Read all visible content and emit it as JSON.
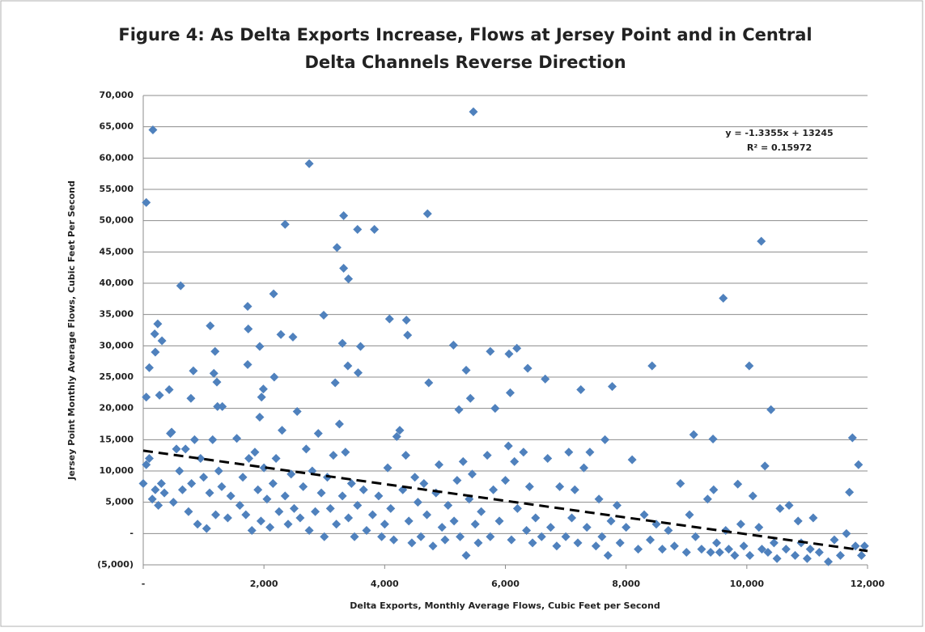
{
  "chart_data": {
    "type": "scatter",
    "title": [
      "Figure 4: As Delta Exports Increase, Flows at Jersey Point and in Central",
      "Delta Channels Reverse Direction"
    ],
    "x_label": "Delta Exports, Monthly Average Flows, Cubic Feet per Second",
    "y_label": "Jersey Point Monthly Average Flows, Cubic Feet Per Second",
    "annotations": [
      "y = -1.3355x + 13245",
      "R² = 0.15972"
    ],
    "trendline": {
      "slope": -1.3355,
      "intercept": 13245
    },
    "color": "#4f81bd",
    "grid": true,
    "xlim": [
      0,
      12000
    ],
    "ylim": [
      -5000,
      70000
    ],
    "xticks": [
      {
        "value": 0,
        "label": "-"
      },
      {
        "value": 2000,
        "label": "2,000"
      },
      {
        "value": 4000,
        "label": "4,000"
      },
      {
        "value": 6000,
        "label": "6,000"
      },
      {
        "value": 8000,
        "label": "8,000"
      },
      {
        "value": 10000,
        "label": "10,000"
      },
      {
        "value": 12000,
        "label": "12,000"
      }
    ],
    "yticks": [
      {
        "value": -5000,
        "label": "(5,000)"
      },
      {
        "value": 0,
        "label": "-"
      },
      {
        "value": 5000,
        "label": "5,000"
      },
      {
        "value": 10000,
        "label": "10,000"
      },
      {
        "value": 15000,
        "label": "15,000"
      },
      {
        "value": 20000,
        "label": "20,000"
      },
      {
        "value": 25000,
        "label": "25,000"
      },
      {
        "value": 30000,
        "label": "30,000"
      },
      {
        "value": 35000,
        "label": "35,000"
      },
      {
        "value": 40000,
        "label": "40,000"
      },
      {
        "value": 45000,
        "label": "45,000"
      },
      {
        "value": 50000,
        "label": "50,000"
      },
      {
        "value": 55000,
        "label": "55,000"
      },
      {
        "value": 60000,
        "label": "60,000"
      },
      {
        "value": 65000,
        "label": "65,000"
      },
      {
        "value": 70000,
        "label": "70,000"
      }
    ],
    "x": [
      50,
      160,
      100,
      50,
      190,
      240,
      200,
      310,
      270,
      430,
      620,
      470,
      790,
      830,
      1110,
      1190,
      1170,
      1220,
      1230,
      1310,
      1730,
      1740,
      1730,
      2160,
      2170,
      1930,
      1990,
      1930,
      1960,
      2280,
      2480,
      2350,
      2750,
      2990,
      3210,
      3320,
      3320,
      3400,
      3550,
      3830,
      3300,
      3390,
      3560,
      3600,
      3180,
      4710,
      4080,
      4360,
      4380,
      4730,
      5470,
      5140,
      5350,
      5420,
      5230,
      5830,
      5750,
      6060,
      6190,
      6080,
      6370,
      6660,
      7250,
      7770,
      8430,
      9610,
      10240,
      10040,
      10400,
      9120,
      9440,
      9850,
      11750,
      11850,
      11700,
      0,
      50,
      100,
      150,
      200,
      250,
      300,
      350,
      450,
      500,
      550,
      600,
      650,
      700,
      750,
      800,
      850,
      900,
      950,
      1000,
      1050,
      1100,
      1150,
      1200,
      1250,
      1300,
      1400,
      1450,
      1550,
      1600,
      1650,
      1700,
      1750,
      1800,
      1850,
      1900,
      1950,
      2000,
      2050,
      2100,
      2150,
      2200,
      2250,
      2300,
      2350,
      2400,
      2450,
      2500,
      2550,
      2600,
      2650,
      2700,
      2750,
      2800,
      2850,
      2900,
      2950,
      3000,
      3050,
      3100,
      3150,
      3200,
      3250,
      3300,
      3350,
      3400,
      3450,
      3500,
      3550,
      3650,
      3700,
      3800,
      3900,
      3950,
      4000,
      4050,
      4100,
      4150,
      4200,
      4250,
      4300,
      4350,
      4400,
      4450,
      4500,
      4550,
      4600,
      4650,
      4700,
      4800,
      4850,
      4900,
      4950,
      5000,
      5050,
      5150,
      5200,
      5250,
      5300,
      5350,
      5400,
      5450,
      5500,
      5550,
      5600,
      5700,
      5750,
      5800,
      5900,
      6000,
      6050,
      6100,
      6150,
      6200,
      6300,
      6350,
      6400,
      6450,
      6500,
      6600,
      6700,
      6750,
      6850,
      6900,
      7000,
      7050,
      7100,
      7150,
      7200,
      7300,
      7350,
      7400,
      7500,
      7550,
      7600,
      7650,
      7700,
      7750,
      7850,
      7900,
      8000,
      8100,
      8200,
      8300,
      8400,
      8500,
      8600,
      8700,
      8800,
      8900,
      9000,
      9050,
      9150,
      9250,
      9350,
      9400,
      9450,
      9500,
      9550,
      9650,
      9700,
      9800,
      9900,
      9950,
      10050,
      10100,
      10200,
      10250,
      10300,
      10350,
      10450,
      10500,
      10550,
      10650,
      10700,
      10800,
      10850,
      10900,
      11000,
      11050,
      11100,
      11200,
      11350,
      11450,
      11550,
      11650,
      11800,
      11900,
      11950
    ],
    "values": [
      52900,
      64500,
      26500,
      21800,
      31900,
      33500,
      29000,
      30800,
      22100,
      23000,
      39600,
      16200,
      21600,
      26000,
      33200,
      29100,
      25600,
      24200,
      20300,
      20300,
      36300,
      32700,
      27000,
      38300,
      25000,
      29900,
      23100,
      18600,
      21800,
      31800,
      31400,
      49400,
      59100,
      34900,
      45700,
      50800,
      42400,
      40700,
      48600,
      48600,
      30400,
      26800,
      25700,
      29900,
      24100,
      51100,
      34300,
      34100,
      31700,
      24100,
      67400,
      30100,
      26100,
      21600,
      19800,
      20000,
      29100,
      28700,
      29600,
      22500,
      26400,
      24700,
      23000,
      23500,
      26800,
      37600,
      46700,
      26800,
      19800,
      15800,
      15100,
      7900,
      15300,
      11000,
      6600,
      8000,
      11000,
      12000,
      5500,
      7000,
      4500,
      8000,
      6500,
      16000,
      5000,
      13500,
      10000,
      7000,
      13500,
      3500,
      8000,
      15000,
      1500,
      12000,
      9000,
      800,
      6500,
      15000,
      3000,
      10000,
      7500,
      2500,
      6000,
      15200,
      4500,
      9000,
      3000,
      12000,
      500,
      13000,
      7000,
      2000,
      10500,
      5500,
      1000,
      8000,
      12000,
      3500,
      16500,
      6000,
      1500,
      9500,
      4000,
      19500,
      2500,
      7500,
      13500,
      500,
      10000,
      3500,
      16000,
      6500,
      -500,
      9000,
      4000,
      12500,
      1500,
      17500,
      6000,
      13000,
      2500,
      8000,
      -500,
      4500,
      7000,
      500,
      3000,
      6000,
      -500,
      1500,
      10500,
      4000,
      -1000,
      15500,
      16500,
      7000,
      12500,
      2000,
      -1500,
      9000,
      5000,
      -500,
      8000,
      3000,
      -2000,
      6500,
      11000,
      1000,
      -1000,
      4500,
      2000,
      8500,
      -500,
      11500,
      -3500,
      5500,
      9500,
      1500,
      -1500,
      3500,
      12500,
      -500,
      7000,
      2000,
      8500,
      14000,
      -1000,
      11500,
      4000,
      13000,
      500,
      7500,
      -1500,
      2500,
      -500,
      12000,
      1000,
      -2000,
      7500,
      -500,
      13000,
      2500,
      7000,
      -1500,
      10500,
      1000,
      13000,
      -2000,
      5500,
      -500,
      15000,
      -3500,
      2000,
      4500,
      -1500,
      1000,
      11800,
      -2500,
      3000,
      -1000,
      1500,
      -2500,
      500,
      -2000,
      8000,
      -3000,
      3000,
      -500,
      -2500,
      5500,
      -3000,
      7000,
      -1500,
      -3000,
      500,
      -2500,
      -3500,
      1500,
      -2000,
      -3500,
      6000,
      1000,
      -2500,
      10800,
      -3000,
      -1500,
      -4000,
      4000,
      -2500,
      4500,
      -3500,
      2000,
      -1500,
      -4000,
      -2500,
      2500,
      -3000,
      -4500,
      -1000,
      -3500,
      0,
      -2000,
      -3500,
      -2000
    ]
  }
}
